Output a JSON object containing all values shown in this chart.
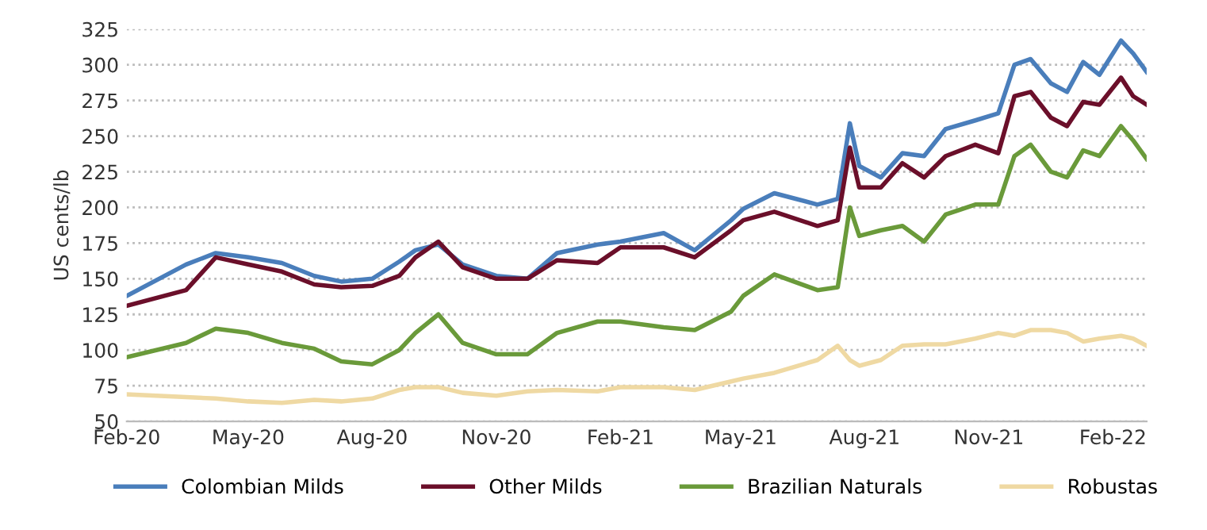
{
  "chart_data": {
    "type": "line",
    "ylabel": "US cents/lb",
    "x": [
      "2020-02-01",
      "2020-03-16",
      "2020-04-07",
      "2020-05-01",
      "2020-05-26",
      "2020-06-19",
      "2020-07-09",
      "2020-08-01",
      "2020-08-21",
      "2020-09-02",
      "2020-09-19",
      "2020-10-07",
      "2020-11-01",
      "2020-11-24",
      "2020-12-16",
      "2021-01-15",
      "2021-02-01",
      "2021-03-05",
      "2021-03-28",
      "2021-04-24",
      "2021-05-03",
      "2021-05-26",
      "2021-06-27",
      "2021-07-12",
      "2021-07-21",
      "2021-07-28",
      "2021-08-13",
      "2021-08-29",
      "2021-09-14",
      "2021-09-30",
      "2021-10-22",
      "2021-11-08",
      "2021-11-20",
      "2021-12-02",
      "2021-12-17",
      "2021-12-29",
      "2022-01-10",
      "2022-01-22",
      "2022-02-07",
      "2022-02-16",
      "2022-02-26"
    ],
    "series": [
      {
        "name": "Colombian Milds",
        "color": "#4a7ebb",
        "values": [
          138,
          160,
          168,
          165,
          161,
          152,
          148,
          150,
          162,
          170,
          174,
          160,
          152,
          150,
          168,
          174,
          176,
          182,
          170,
          191,
          199,
          210,
          202,
          206,
          259,
          229,
          221,
          238,
          236,
          255,
          261,
          266,
          300,
          304,
          287,
          281,
          302,
          293,
          317,
          308,
          295
        ]
      },
      {
        "name": "Other Milds",
        "color": "#6b0f2a",
        "values": [
          131,
          142,
          165,
          160,
          155,
          146,
          144,
          145,
          152,
          165,
          176,
          158,
          150,
          150,
          163,
          161,
          172,
          172,
          165,
          184,
          191,
          197,
          187,
          191,
          242,
          214,
          214,
          231,
          221,
          236,
          244,
          238,
          278,
          281,
          263,
          257,
          274,
          272,
          291,
          278,
          272
        ]
      },
      {
        "name": "Brazilian Naturals",
        "color": "#6a9a3a",
        "values": [
          95,
          105,
          115,
          112,
          105,
          101,
          92,
          90,
          100,
          112,
          125,
          105,
          97,
          97,
          112,
          120,
          120,
          116,
          114,
          127,
          138,
          153,
          142,
          144,
          200,
          180,
          184,
          187,
          176,
          195,
          202,
          202,
          236,
          244,
          225,
          221,
          240,
          236,
          257,
          247,
          234
        ]
      },
      {
        "name": "Robustas",
        "color": "#efd9a3",
        "values": [
          69,
          67,
          66,
          64,
          63,
          65,
          64,
          66,
          72,
          74,
          74,
          70,
          68,
          71,
          72,
          71,
          74,
          74,
          72,
          78,
          80,
          84,
          93,
          103,
          93,
          89,
          93,
          103,
          104,
          104,
          108,
          112,
          110,
          114,
          114,
          112,
          106,
          108,
          110,
          108,
          103
        ]
      }
    ],
    "xlim": [
      "2020-02-01",
      "2022-02-26"
    ],
    "xticks": [
      {
        "value": "2020-02-01",
        "label": "Feb-20"
      },
      {
        "value": "2020-05-01",
        "label": "May-20"
      },
      {
        "value": "2020-08-01",
        "label": "Aug-20"
      },
      {
        "value": "2020-11-01",
        "label": "Nov-20"
      },
      {
        "value": "2021-02-01",
        "label": "Feb-21"
      },
      {
        "value": "2021-05-01",
        "label": "May-21"
      },
      {
        "value": "2021-08-01",
        "label": "Aug-21"
      },
      {
        "value": "2021-11-01",
        "label": "Nov-21"
      },
      {
        "value": "2022-02-01",
        "label": "Feb-22"
      }
    ],
    "ylim": [
      50,
      325
    ],
    "yticks": [
      50,
      75,
      100,
      125,
      150,
      175,
      200,
      225,
      250,
      275,
      300,
      325
    ],
    "grid": "y",
    "legend": "bottom",
    "line_style": "solid",
    "marker": "none"
  }
}
